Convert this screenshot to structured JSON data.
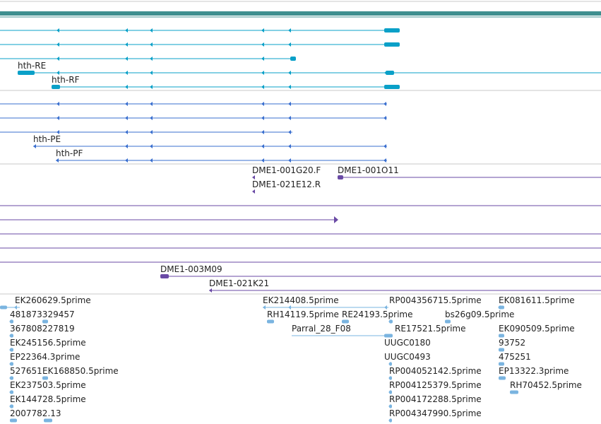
{
  "colors": {
    "background": "#ffffff",
    "header_band": "#3f8f8f",
    "transcript": "#0aa0c8",
    "protein": "#3a6fcf",
    "insertion": "#6a4aa5",
    "est": "#7ab4e0",
    "divider": "#c8c8c8",
    "text": "#222222"
  },
  "tracks": {
    "transcripts": {
      "labels": [
        "hth-RE",
        "hth-RF"
      ]
    },
    "proteins": {
      "labels": [
        "hth-PE",
        "hth-PF"
      ]
    },
    "insertions": {
      "labels": [
        "DME1-001G20.F",
        "DME1-001O11",
        "DME1-021E12.R",
        "DME1-003M09",
        "DME1-021K21"
      ]
    },
    "ests": {
      "labels": [
        "EK260629.5prime",
        "481873329457",
        "367808227819",
        "EK245156.5prime",
        "EP22364.3prime",
        "527651",
        "EK168850.5prime",
        "EK237503.5prime",
        "EK144728.5prime",
        "2007782.13",
        "EK214408.5prime",
        "RH14119.5prime",
        "RE24193.5prime",
        "Parral_28_F08",
        "RP004356715.5prime",
        "bs26g09.5prime",
        "RE17521.5prime",
        "UUGC0180",
        "UUGC0493",
        "RP004052142.5prime",
        "RP004125379.5prime",
        "RP004172288.5prime",
        "RP004347990.5prime",
        "EK081611.5prime",
        "EK090509.5prime",
        "93752",
        "475251",
        "EP13322.3prime",
        "RH70452.5prime"
      ]
    }
  }
}
